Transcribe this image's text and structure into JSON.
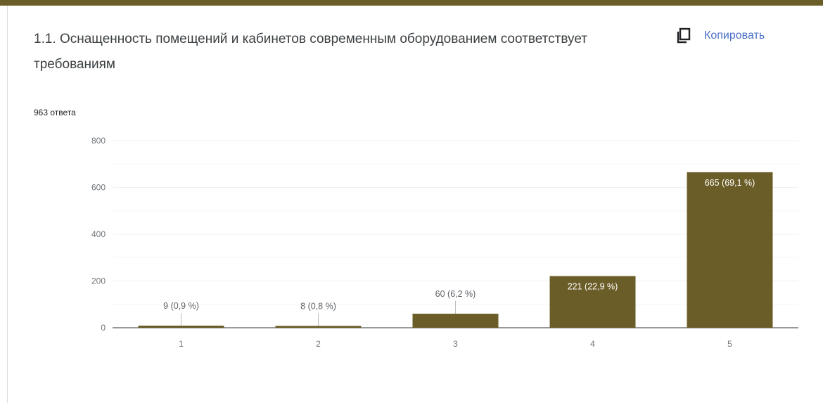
{
  "question_title": "1.1. Оснащенность помещений и кабинетов современным оборудованием соответствует требованиям",
  "response_count": "963 ответа",
  "copy_button": {
    "label": "Копировать",
    "icon": "copy-icon"
  },
  "colors": {
    "bar": "#6b5d27",
    "top_bar": "#6b5d27",
    "link": "#4a6fc7",
    "grid": "#f0f0f0"
  },
  "chart_data": {
    "type": "bar",
    "title": "",
    "xlabel": "",
    "ylabel": "",
    "categories": [
      "1",
      "2",
      "3",
      "4",
      "5"
    ],
    "values": [
      9,
      8,
      60,
      221,
      665
    ],
    "data_labels": [
      "9 (0,9 %)",
      "8 (0,8 %)",
      "60 (6,2 %)",
      "221 (22,9 %)",
      "665 (69,1 %)"
    ],
    "ylim": [
      0,
      800
    ],
    "yticks": [
      "0",
      "200",
      "400",
      "600",
      "800"
    ],
    "grid": true,
    "legend": "none"
  }
}
